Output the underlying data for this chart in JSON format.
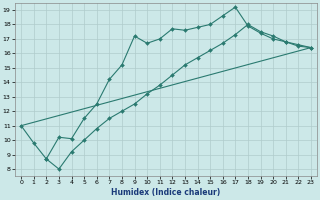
{
  "xlabel": "Humidex (Indice chaleur)",
  "background_color": "#cce8e8",
  "grid_color": "#b0cccc",
  "line_color": "#2a7a70",
  "xlim": [
    -0.5,
    23.5
  ],
  "ylim": [
    7.5,
    19.5
  ],
  "xticks": [
    0,
    1,
    2,
    3,
    4,
    5,
    6,
    7,
    8,
    9,
    10,
    11,
    12,
    13,
    14,
    15,
    16,
    17,
    18,
    19,
    20,
    21,
    22,
    23
  ],
  "yticks": [
    8,
    9,
    10,
    11,
    12,
    13,
    14,
    15,
    16,
    17,
    18,
    19
  ],
  "line1_x": [
    0,
    1,
    2,
    3,
    4,
    5,
    6,
    7,
    8,
    9,
    10,
    11,
    12,
    13,
    14,
    15,
    16,
    17,
    18,
    19,
    20,
    21,
    22,
    23
  ],
  "line1_y": [
    11.0,
    9.8,
    8.7,
    10.2,
    10.1,
    11.5,
    12.5,
    14.2,
    15.2,
    17.2,
    16.7,
    17.0,
    17.7,
    17.6,
    17.8,
    18.0,
    18.6,
    19.2,
    17.9,
    17.4,
    17.0,
    16.8,
    16.5,
    16.4
  ],
  "line2_x": [
    2,
    3,
    4,
    5,
    6,
    7,
    8,
    9,
    10,
    11,
    12,
    13,
    14,
    15,
    16,
    17,
    18,
    19,
    20,
    21,
    22,
    23
  ],
  "line2_y": [
    8.7,
    8.0,
    9.2,
    10.0,
    10.8,
    11.5,
    12.0,
    12.5,
    13.2,
    13.8,
    14.5,
    15.2,
    15.7,
    16.2,
    16.7,
    17.3,
    18.0,
    17.5,
    17.2,
    16.8,
    16.6,
    16.4
  ],
  "line3_x": [
    0,
    23
  ],
  "line3_y": [
    11.0,
    16.4
  ]
}
